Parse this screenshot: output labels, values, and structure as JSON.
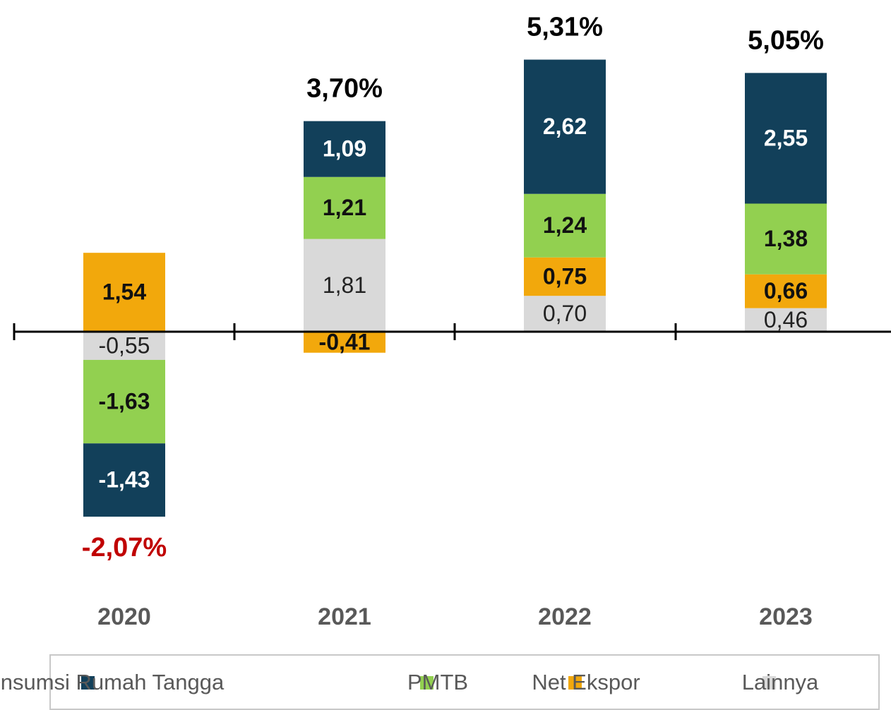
{
  "chart_data": {
    "type": "stacked-bar",
    "categories": [
      "2020",
      "2021",
      "2022",
      "2023"
    ],
    "series": [
      {
        "name": "Konsumsi Rumah Tangga",
        "color": "#12405a",
        "values": [
          -1.43,
          1.09,
          2.62,
          2.55
        ],
        "value_labels": [
          "-1,43",
          "1,09",
          "2,62",
          "2,55"
        ]
      },
      {
        "name": "PMTB",
        "color": "#92d050",
        "values": [
          -1.63,
          1.21,
          1.24,
          1.38
        ],
        "value_labels": [
          "-1,63",
          "1,21",
          "1,24",
          "1,38"
        ]
      },
      {
        "name": "Net Ekspor",
        "color": "#f2a80c",
        "values": [
          1.54,
          -0.41,
          0.75,
          0.66
        ],
        "value_labels": [
          "1,54",
          "-0,41",
          "0,75",
          "0,66"
        ]
      },
      {
        "name": "Lainnya",
        "color": "#d9d9d9",
        "values": [
          -0.55,
          1.81,
          0.7,
          0.46
        ],
        "value_labels": [
          "-0,55",
          "1,81",
          "0,70",
          "0,46"
        ]
      }
    ],
    "totals": [
      -2.07,
      3.7,
      5.31,
      5.05
    ],
    "total_labels": [
      "-2,07%",
      "3,70%",
      "5,31%",
      "5,05%"
    ]
  }
}
